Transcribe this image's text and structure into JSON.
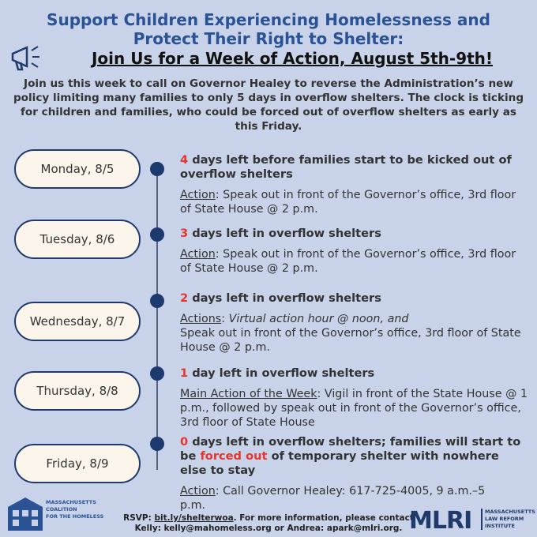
{
  "header": {
    "title_line1": "Support Children Experiencing Homelessness and",
    "title_line2": "Protect Their Right to Shelter:",
    "subtitle": "Join Us for a Week of Action, August 5th-9th!"
  },
  "intro": "Join us this week to call on Governor Healey to reverse the Administration’s new policy limiting many families to only 5 days in overflow shelters. The clock is ticking for children and families, who could be forced out of overflow shelters as early as this Friday.",
  "days": [
    {
      "date": "Monday, 8/5",
      "headline": [
        "4",
        " days left before families start to be kicked out of overflow shelters"
      ],
      "action_label": "Action",
      "action": [
        ": Speak out in front of the Governor’s office, 3rd floor of State House @ 2 p.m."
      ]
    },
    {
      "date": "Tuesday, 8/6",
      "headline": [
        "3",
        " days left in overflow shelters"
      ],
      "action_label": "Action",
      "action": [
        ": Speak out in front of the Governor’s office, 3rd floor of State House @ 2 p.m."
      ]
    },
    {
      "date": "Wednesday, 8/7",
      "headline": [
        "2",
        " days left in overflow shelters"
      ],
      "action_label": "Actions",
      "action": [
        ": ",
        "Virtual action hour @ noon, and",
        "Speak out in front of the Governor’s office, 3rd floor of State House @ 2 p.m."
      ]
    },
    {
      "date": "Thursday, 8/8",
      "headline": [
        "1",
        " day left in overflow shelters"
      ],
      "action_label": "Main Action of the Week",
      "action": [
        ": Vigil in front of the State House @ 1 p.m., followed by speak out in front of the Governor’s office, 3rd floor of State House"
      ]
    },
    {
      "date": "Friday, 8/9",
      "headline": [
        "0",
        " days left in overflow shelters; families will start to be ",
        "forced out",
        " of temporary shelter with nowhere else to stay"
      ],
      "action_label": "Action",
      "action": [
        ": Call Governor Healey: 617-725-4005, 9 a.m.–5 p.m."
      ]
    }
  ],
  "footer": {
    "left_logo": [
      "MASSACHUSETTS",
      "COALITION",
      "FOR THE HOMELESS"
    ],
    "rsvp": [
      "RSVP: ",
      "bit.ly/shelterwoa",
      ". For more information, please contact Kelly: kelly@mahomeless.org or Andrea: apark@mlri.org."
    ],
    "right_logo": "MLRI",
    "right_logo_name": [
      "MASSACHUSETTS",
      "LAW REFORM",
      "INSTITUTE"
    ]
  }
}
